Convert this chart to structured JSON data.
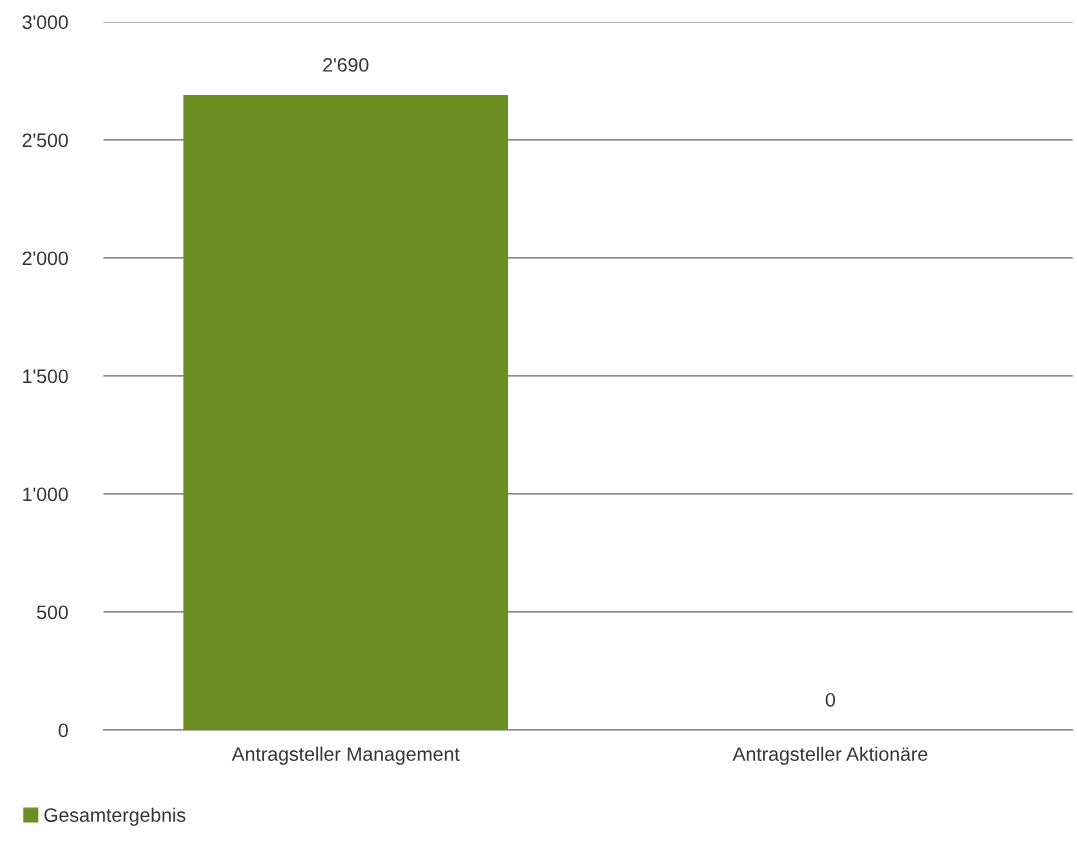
{
  "chart_data": {
    "type": "bar",
    "categories": [
      "Antragsteller Management",
      "Antragsteller Aktionäre"
    ],
    "series": [
      {
        "name": "Gesamtergebnis",
        "color": "#6b8e23",
        "values": [
          2690,
          0
        ],
        "value_labels": [
          "2'690",
          "0"
        ]
      }
    ],
    "ylim": [
      0,
      3000
    ],
    "yticks": [
      {
        "value": 0,
        "label": "0"
      },
      {
        "value": 500,
        "label": "500"
      },
      {
        "value": 1000,
        "label": "1'000"
      },
      {
        "value": 1500,
        "label": "1'500"
      },
      {
        "value": 2000,
        "label": "2'000"
      },
      {
        "value": 2500,
        "label": "2'500"
      },
      {
        "value": 3000,
        "label": "3'000"
      }
    ],
    "grid": "y",
    "legend": "bottom left"
  }
}
